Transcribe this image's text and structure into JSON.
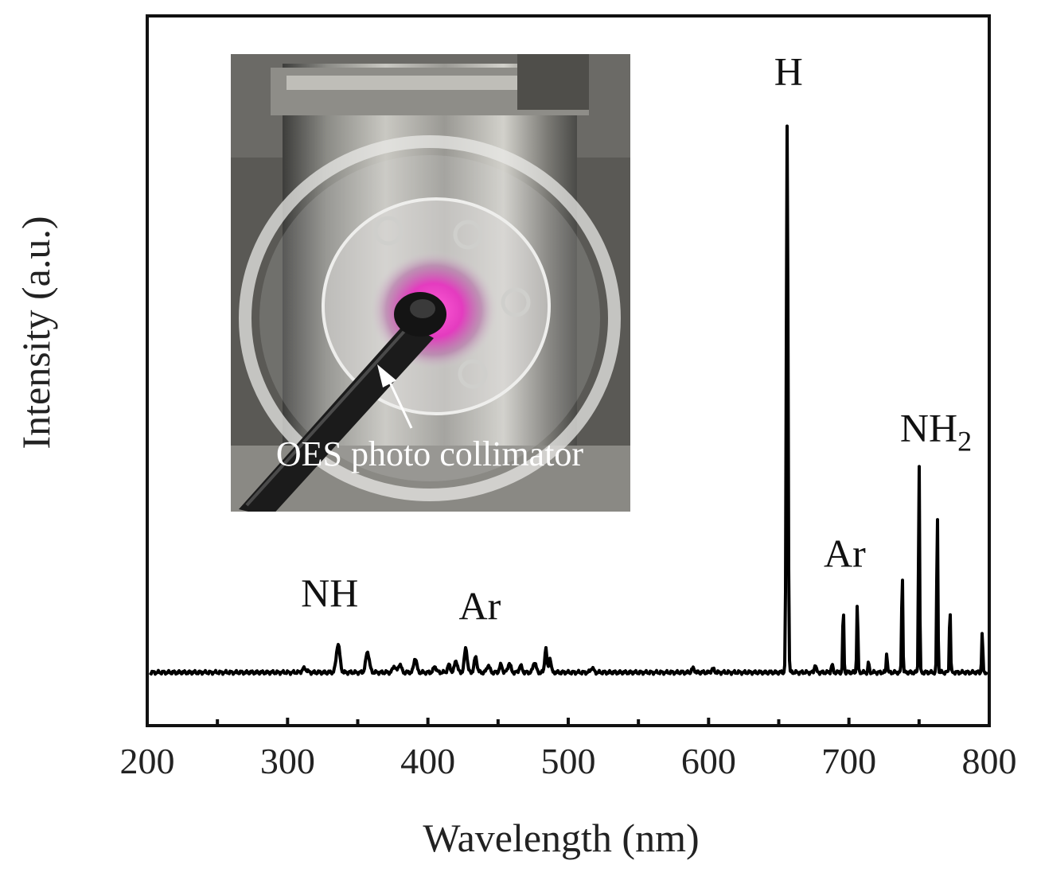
{
  "chart_data": {
    "type": "line",
    "xlabel": "Wavelength (nm)",
    "ylabel": "Intensity (a.u.)",
    "xlim": [
      200,
      800
    ],
    "ylim": [
      0,
      100
    ],
    "x_ticks": [
      200,
      300,
      400,
      500,
      600,
      700,
      800
    ],
    "x_minor_ticks": [
      250,
      350,
      450,
      550,
      650,
      750
    ],
    "y_ticks_shown": false,
    "grid": false,
    "baseline": 3,
    "peaks": [
      {
        "x": 312,
        "y": 3.6,
        "w": 3
      },
      {
        "x": 336,
        "y": 7.3,
        "w": 2.5
      },
      {
        "x": 357,
        "y": 6.1,
        "w": 2.5
      },
      {
        "x": 376,
        "y": 4.0,
        "w": 2
      },
      {
        "x": 380,
        "y": 4.3,
        "w": 2
      },
      {
        "x": 391,
        "y": 5.2,
        "w": 2
      },
      {
        "x": 405,
        "y": 3.9,
        "w": 2
      },
      {
        "x": 415,
        "y": 4.1,
        "w": 2
      },
      {
        "x": 420,
        "y": 4.8,
        "w": 2
      },
      {
        "x": 427,
        "y": 6.7,
        "w": 2
      },
      {
        "x": 434,
        "y": 5.3,
        "w": 2
      },
      {
        "x": 443,
        "y": 4.1,
        "w": 2
      },
      {
        "x": 452,
        "y": 4.1,
        "w": 2
      },
      {
        "x": 458,
        "y": 4.4,
        "w": 2
      },
      {
        "x": 466,
        "y": 4.0,
        "w": 2
      },
      {
        "x": 476,
        "y": 4.6,
        "w": 2
      },
      {
        "x": 484,
        "y": 6.7,
        "w": 1.5
      },
      {
        "x": 487,
        "y": 5.2,
        "w": 1.5
      },
      {
        "x": 517,
        "y": 3.7,
        "w": 2
      },
      {
        "x": 589,
        "y": 3.6,
        "w": 2
      },
      {
        "x": 603,
        "y": 3.5,
        "w": 2
      },
      {
        "x": 656,
        "y": 86.0,
        "w": 1.2
      },
      {
        "x": 676,
        "y": 4.2,
        "w": 1.2
      },
      {
        "x": 688,
        "y": 4.1,
        "w": 1.2
      },
      {
        "x": 696,
        "y": 12.9,
        "w": 0.8
      },
      {
        "x": 706,
        "y": 13.6,
        "w": 0.8
      },
      {
        "x": 714,
        "y": 4.6,
        "w": 0.8
      },
      {
        "x": 727,
        "y": 6.1,
        "w": 0.8
      },
      {
        "x": 738,
        "y": 18.6,
        "w": 0.8
      },
      {
        "x": 750,
        "y": 35.0,
        "w": 0.8
      },
      {
        "x": 763,
        "y": 27.4,
        "w": 0.8
      },
      {
        "x": 772,
        "y": 13.1,
        "w": 0.8
      },
      {
        "x": 795,
        "y": 9.0,
        "w": 0.8
      }
    ],
    "annotations": [
      {
        "text": "NH",
        "x": 330,
        "y": 13
      },
      {
        "text": "Ar",
        "x": 437,
        "y": 11
      },
      {
        "text": "H",
        "x": 657,
        "y": 92
      },
      {
        "text": "Ar",
        "x": 697,
        "y": 19
      },
      {
        "text": "NH",
        "sub": "2",
        "x": 762,
        "y": 38
      }
    ],
    "inset": {
      "label": "OES photo collimator"
    }
  }
}
